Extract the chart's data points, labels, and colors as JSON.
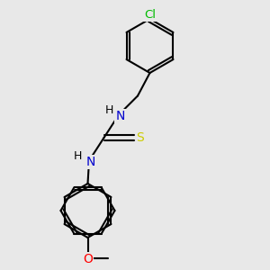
{
  "background_color": "#e8e8e8",
  "atom_colors": {
    "C": "#000000",
    "N": "#0000cd",
    "S": "#cccc00",
    "Cl": "#00bb00",
    "O": "#ff0000",
    "H": "#000000"
  },
  "bond_color": "#000000",
  "bond_width": 1.5,
  "figsize": [
    3.0,
    3.0
  ],
  "dpi": 100,
  "xlim": [
    0.0,
    6.5
  ],
  "ylim": [
    -1.5,
    8.5
  ]
}
